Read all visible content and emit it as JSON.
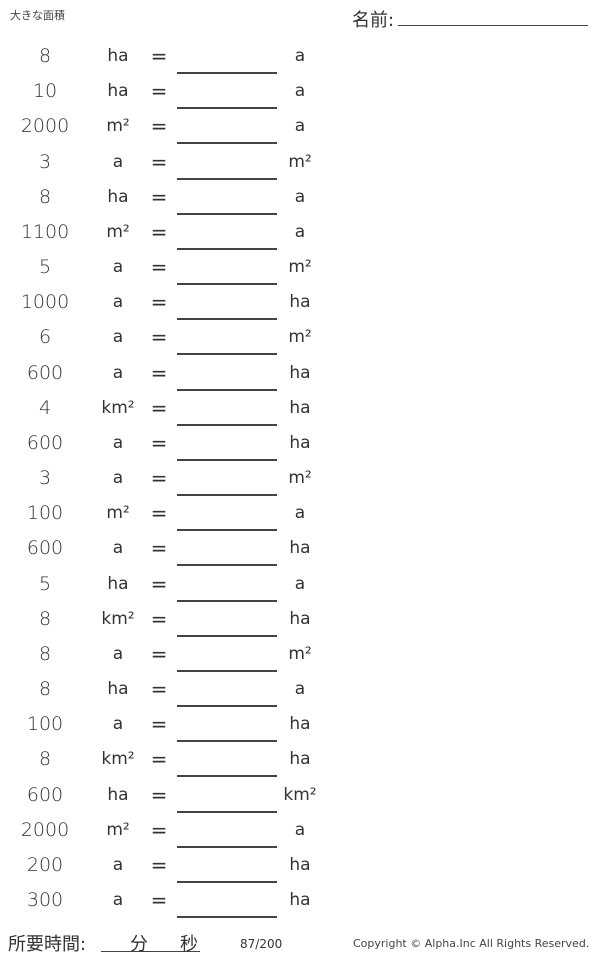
{
  "header": {
    "title": "大きな面積",
    "name_label": "名前:"
  },
  "problems": [
    {
      "value": "8",
      "from": "ha",
      "to": "a"
    },
    {
      "value": "10",
      "from": "ha",
      "to": "a"
    },
    {
      "value": "2000",
      "from": "m²",
      "to": "a"
    },
    {
      "value": "3",
      "from": "a",
      "to": "m²"
    },
    {
      "value": "8",
      "from": "ha",
      "to": "a"
    },
    {
      "value": "1100",
      "from": "m²",
      "to": "a"
    },
    {
      "value": "5",
      "from": "a",
      "to": "m²"
    },
    {
      "value": "1000",
      "from": "a",
      "to": "ha"
    },
    {
      "value": "6",
      "from": "a",
      "to": "m²"
    },
    {
      "value": "600",
      "from": "a",
      "to": "ha"
    },
    {
      "value": "4",
      "from": "km²",
      "to": "ha"
    },
    {
      "value": "600",
      "from": "a",
      "to": "ha"
    },
    {
      "value": "3",
      "from": "a",
      "to": "m²"
    },
    {
      "value": "100",
      "from": "m²",
      "to": "a"
    },
    {
      "value": "600",
      "from": "a",
      "to": "ha"
    },
    {
      "value": "5",
      "from": "ha",
      "to": "a"
    },
    {
      "value": "8",
      "from": "km²",
      "to": "ha"
    },
    {
      "value": "8",
      "from": "a",
      "to": "m²"
    },
    {
      "value": "8",
      "from": "ha",
      "to": "a"
    },
    {
      "value": "100",
      "from": "a",
      "to": "ha"
    },
    {
      "value": "8",
      "from": "km²",
      "to": "ha"
    },
    {
      "value": "600",
      "from": "ha",
      "to": "km²"
    },
    {
      "value": "2000",
      "from": "m²",
      "to": "a"
    },
    {
      "value": "200",
      "from": "a",
      "to": "ha"
    },
    {
      "value": "300",
      "from": "a",
      "to": "ha"
    }
  ],
  "equals": "=",
  "footer": {
    "time_label": "所要時間:",
    "minutes": "分",
    "seconds": "秒",
    "page": "87/200",
    "copyright": "Copyright © Alpha.Inc All Rights Reserved."
  }
}
